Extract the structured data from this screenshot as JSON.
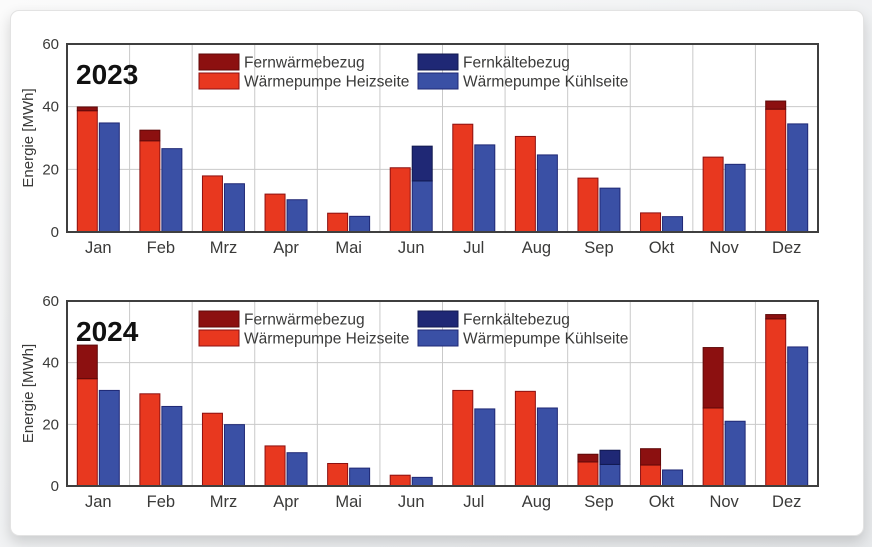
{
  "figure": {
    "kind": "stacked-grouped-bar-charts",
    "text_color": "#3a3a39",
    "frame_color": "#3f3f3f",
    "grid_color": "#c9c9c9",
    "plot_bg": "#ffffff"
  },
  "legend": {
    "entries": [
      {
        "label": "Fernwärmebezug",
        "color": "#8C1010",
        "stroke": "#5f0909",
        "col": 0,
        "row": 0
      },
      {
        "label": "Wärmepumpe Heizseite",
        "color": "#E8381F",
        "stroke": "#8C1010",
        "col": 0,
        "row": 1
      },
      {
        "label": "Fernkältebezug",
        "color": "#1F2875",
        "stroke": "#11194f",
        "col": 1,
        "row": 0
      },
      {
        "label": "Wärmepumpe Kühlseite",
        "color": "#3A50A5",
        "stroke": "#1F2875",
        "col": 1,
        "row": 1
      }
    ]
  },
  "chart_data": [
    {
      "type": "bar",
      "title": "2023",
      "xlabel": "",
      "ylabel": "Energie [MWh]",
      "ylim": [
        0,
        60
      ],
      "yticks": [
        0,
        20,
        40,
        60
      ],
      "grid": true,
      "legend_position": "top-center",
      "categories": [
        "Jan",
        "Feb",
        "Mrz",
        "Apr",
        "Mai",
        "Jun",
        "Jul",
        "Aug",
        "Sep",
        "Okt",
        "Nov",
        "Dez"
      ],
      "stacks": [
        {
          "name": "heat",
          "series": [
            {
              "name": "Wärmepumpe Heizseite",
              "color": "#E8381F",
              "stroke": "#8C1010",
              "values": [
                38.7,
                29.1,
                17.9,
                12.1,
                6.0,
                20.5,
                34.4,
                30.5,
                17.2,
                6.1,
                23.9,
                39.2
              ]
            },
            {
              "name": "Fernwärmebezug",
              "color": "#8C1010",
              "stroke": "#5f0909",
              "values": [
                1.2,
                3.4,
                0,
                0,
                0,
                0,
                0,
                0,
                0,
                0,
                0,
                2.6
              ]
            }
          ]
        },
        {
          "name": "cool",
          "series": [
            {
              "name": "Wärmepumpe Kühlseite",
              "color": "#3A50A5",
              "stroke": "#1F2875",
              "values": [
                34.8,
                26.6,
                15.4,
                10.3,
                5.0,
                16.3,
                27.8,
                24.6,
                14.0,
                4.9,
                21.6,
                34.5
              ]
            },
            {
              "name": "Fernkältebezug",
              "color": "#1F2875",
              "stroke": "#11194f",
              "values": [
                0,
                0,
                0,
                0,
                0,
                11.1,
                0,
                0,
                0,
                0,
                0,
                0
              ]
            }
          ]
        }
      ]
    },
    {
      "type": "bar",
      "title": "2024",
      "xlabel": "",
      "ylabel": "Energie [MWh]",
      "ylim": [
        0,
        60
      ],
      "yticks": [
        0,
        20,
        40,
        60
      ],
      "grid": true,
      "legend_position": "top-center",
      "categories": [
        "Jan",
        "Feb",
        "Mrz",
        "Apr",
        "Mai",
        "Jun",
        "Jul",
        "Aug",
        "Sep",
        "Okt",
        "Nov",
        "Dez"
      ],
      "stacks": [
        {
          "name": "heat",
          "series": [
            {
              "name": "Wärmepumpe Heizseite",
              "color": "#E8381F",
              "stroke": "#8C1010",
              "values": [
                34.8,
                29.9,
                23.6,
                13.0,
                7.3,
                3.5,
                31.0,
                30.7,
                7.8,
                6.8,
                25.3,
                54.2
              ]
            },
            {
              "name": "Fernwärmebezug",
              "color": "#8C1010",
              "stroke": "#5f0909",
              "values": [
                10.9,
                0,
                0,
                0,
                0,
                0,
                0,
                0,
                2.5,
                5.3,
                19.6,
                1.4
              ]
            }
          ]
        },
        {
          "name": "cool",
          "series": [
            {
              "name": "Wärmepumpe Kühlseite",
              "color": "#3A50A5",
              "stroke": "#1F2875",
              "values": [
                31.0,
                25.8,
                19.9,
                10.8,
                5.8,
                2.8,
                25.0,
                25.3,
                7.0,
                5.2,
                21.0,
                45.1
              ]
            },
            {
              "name": "Fernkältebezug",
              "color": "#1F2875",
              "stroke": "#11194f",
              "values": [
                0,
                0,
                0,
                0,
                0,
                0,
                0,
                0,
                4.6,
                0,
                0,
                0
              ]
            }
          ]
        }
      ]
    }
  ]
}
